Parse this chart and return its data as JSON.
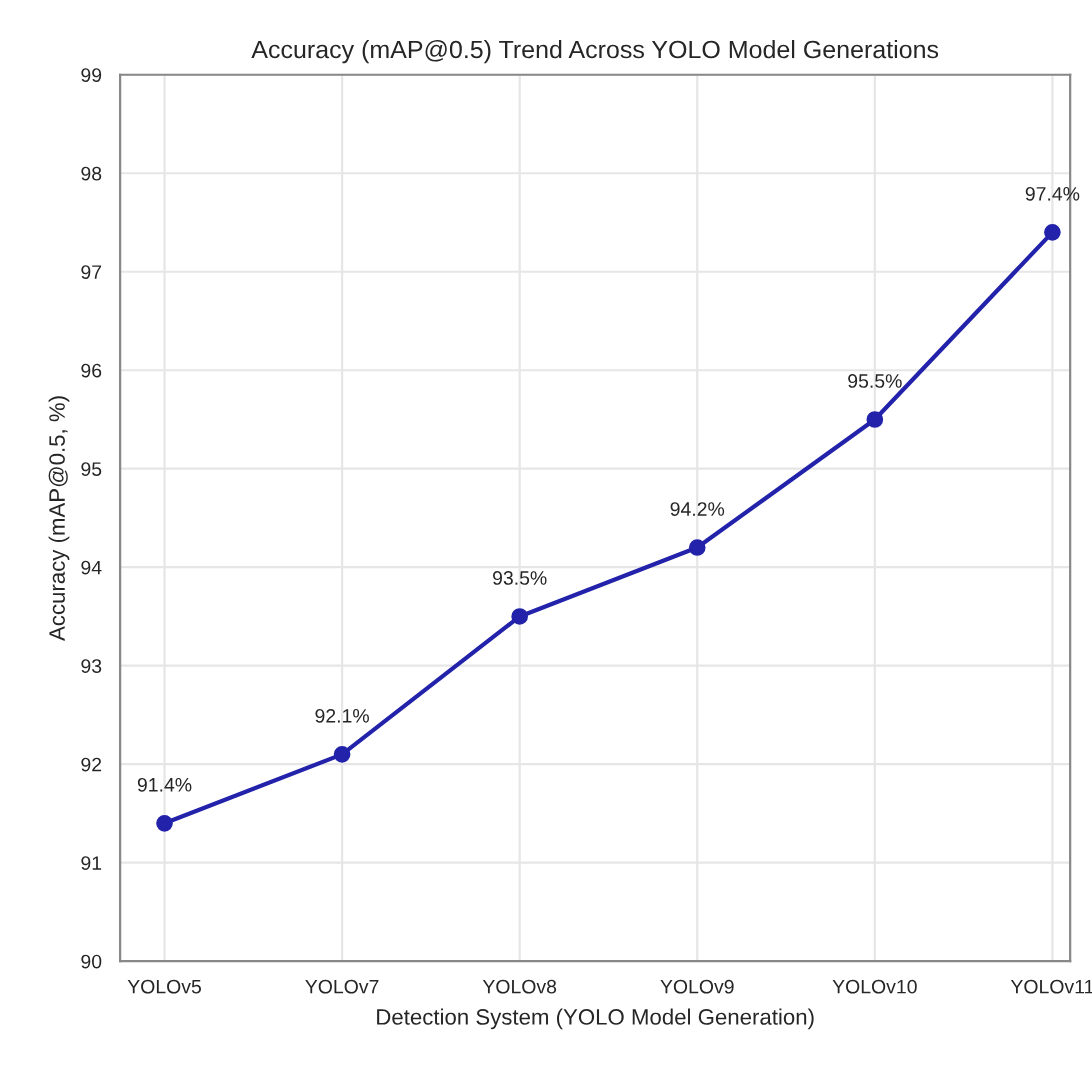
{
  "chart_data": {
    "type": "line",
    "title": "Accuracy (mAP@0.5) Trend Across YOLO Model Generations",
    "xlabel": "Detection System (YOLO Model Generation)",
    "ylabel": "Accuracy (mAP@0.5, %)",
    "categories": [
      "YOLOv5",
      "YOLOv7",
      "YOLOv8",
      "YOLOv9",
      "YOLOv10",
      "YOLOv11"
    ],
    "series": [
      {
        "color": "#2222aa",
        "values": [
          91.4,
          92.1,
          93.5,
          94.2,
          95.5,
          97.4
        ],
        "value_labels": [
          "91.4%",
          "92.1%",
          "93.5%",
          "94.2%",
          "95.5%",
          "97.4%"
        ]
      }
    ],
    "ylim": [
      90,
      99
    ],
    "yticks": [
      90,
      91,
      92,
      93,
      94,
      95,
      96,
      97,
      98,
      99
    ],
    "grid": true,
    "marker": "circle",
    "line_style": "solid",
    "legend": false
  }
}
